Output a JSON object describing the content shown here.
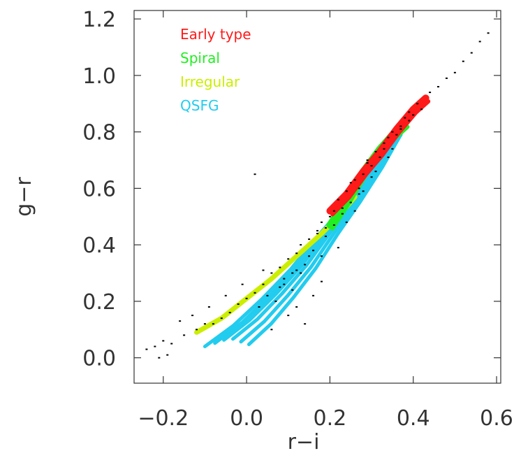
{
  "chart_data": {
    "type": "scatter",
    "title": "",
    "xlabel": "r−i",
    "ylabel": "g−r",
    "xlim": [
      -0.27,
      0.61
    ],
    "ylim": [
      -0.09,
      1.23
    ],
    "x_ticks": [
      -0.2,
      0.0,
      0.2,
      0.4,
      0.6
    ],
    "x_tick_labels": [
      "−0.2",
      "0.0",
      "0.2",
      "0.4",
      "0.6"
    ],
    "y_ticks": [
      0.0,
      0.2,
      0.4,
      0.6,
      0.8,
      1.0,
      1.2
    ],
    "y_tick_labels": [
      "0.0",
      "0.2",
      "0.4",
      "0.6",
      "0.8",
      "1.0",
      "1.2"
    ],
    "grid": false,
    "legend_position": "top-left",
    "series": [
      {
        "name": "Early type",
        "color": "#ff1a1a",
        "kind": "band",
        "x": [
          0.2,
          0.24,
          0.28,
          0.32,
          0.36,
          0.4,
          0.43
        ],
        "y": [
          0.52,
          0.58,
          0.66,
          0.73,
          0.81,
          0.88,
          0.92
        ]
      },
      {
        "name": "Spiral",
        "color": "#22ee22",
        "kind": "band",
        "x": [
          0.2,
          0.24,
          0.28,
          0.32,
          0.35,
          0.38
        ],
        "y": [
          0.47,
          0.56,
          0.66,
          0.74,
          0.79,
          0.83
        ]
      },
      {
        "name": "Irregular",
        "color": "#ccee00",
        "kind": "band",
        "x": [
          -0.12,
          -0.06,
          0.0,
          0.06,
          0.12,
          0.18,
          0.22,
          0.26
        ],
        "y": [
          0.09,
          0.14,
          0.21,
          0.28,
          0.36,
          0.44,
          0.5,
          0.57
        ]
      },
      {
        "name": "QSFG",
        "color": "#22ccee",
        "kind": "fan",
        "x": [
          -0.04,
          0.02,
          0.08,
          0.14,
          0.2,
          0.26,
          0.32,
          0.37
        ],
        "y": [
          0.07,
          0.14,
          0.23,
          0.33,
          0.45,
          0.56,
          0.68,
          0.79
        ]
      },
      {
        "name": "",
        "color": "#000000",
        "kind": "dots",
        "x": [
          -0.24,
          -0.22,
          -0.2,
          -0.18,
          -0.15,
          -0.12,
          -0.1,
          -0.08,
          -0.06,
          -0.04,
          -0.02,
          0.0,
          0.02,
          0.04,
          0.05,
          0.06,
          0.08,
          0.09,
          0.1,
          0.11,
          0.12,
          0.13,
          0.14,
          0.15,
          0.16,
          0.17,
          0.18,
          0.19,
          0.2,
          0.21,
          0.22,
          0.23,
          0.24,
          0.25,
          0.26,
          0.27,
          0.28,
          0.29,
          0.3,
          0.31,
          0.32,
          0.33,
          0.34,
          0.35,
          0.36,
          0.37,
          0.38,
          0.39,
          0.4,
          0.41,
          0.42,
          0.44,
          0.46,
          0.48,
          0.5,
          0.52,
          0.54,
          0.56,
          0.58,
          0.03,
          0.07,
          0.11,
          0.15,
          0.19,
          0.23,
          0.27,
          0.31,
          0.35,
          0.39,
          -0.16,
          -0.13,
          -0.09,
          -0.05,
          -0.01,
          0.04,
          0.09,
          0.13,
          0.17,
          0.21,
          0.25,
          0.29,
          0.33,
          0.37,
          0.12,
          0.16,
          0.14,
          0.1,
          0.18,
          -0.19,
          -0.21,
          0.06,
          0.08,
          0.24,
          0.26,
          0.3,
          0.34,
          0.28,
          0.22,
          0.18,
          0.12,
          0.02
        ],
        "y": [
          0.03,
          0.04,
          0.06,
          0.05,
          0.08,
          0.1,
          0.12,
          0.12,
          0.14,
          0.16,
          0.19,
          0.21,
          0.23,
          0.26,
          0.22,
          0.3,
          0.32,
          0.28,
          0.35,
          0.3,
          0.37,
          0.4,
          0.33,
          0.42,
          0.38,
          0.44,
          0.48,
          0.43,
          0.5,
          0.47,
          0.56,
          0.53,
          0.59,
          0.55,
          0.63,
          0.6,
          0.65,
          0.7,
          0.68,
          0.73,
          0.71,
          0.76,
          0.78,
          0.8,
          0.79,
          0.82,
          0.85,
          0.87,
          0.86,
          0.9,
          0.88,
          0.94,
          0.96,
          0.99,
          1.01,
          1.05,
          1.08,
          1.12,
          1.15,
          0.18,
          0.2,
          0.24,
          0.36,
          0.46,
          0.51,
          0.58,
          0.66,
          0.74,
          0.84,
          0.13,
          0.15,
          0.18,
          0.22,
          0.26,
          0.31,
          0.26,
          0.3,
          0.45,
          0.52,
          0.62,
          0.69,
          0.74,
          0.81,
          0.18,
          0.22,
          0.12,
          0.15,
          0.27,
          0.01,
          0.0,
          0.1,
          0.25,
          0.48,
          0.52,
          0.64,
          0.71,
          0.59,
          0.39,
          0.36,
          0.31,
          0.65
        ]
      }
    ]
  }
}
